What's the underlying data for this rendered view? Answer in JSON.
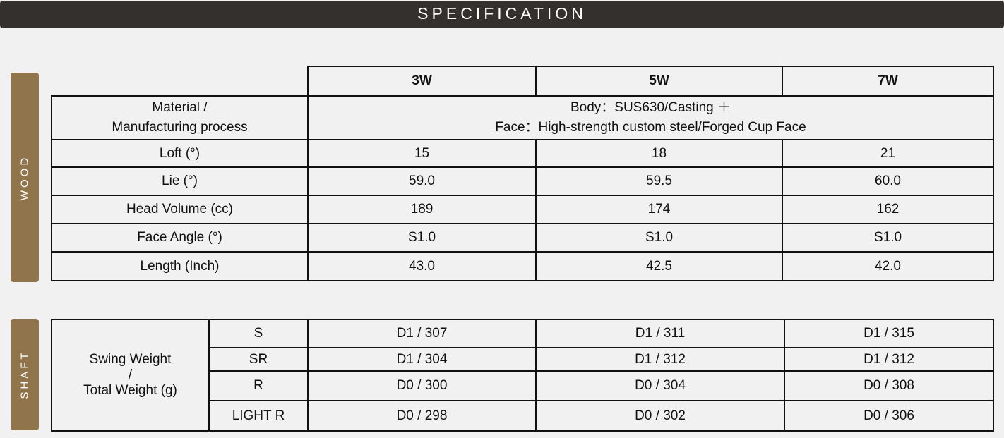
{
  "header": {
    "title": "SPECIFICATION"
  },
  "colors": {
    "header_bg": "#34302d",
    "label_bg": "#8f744c",
    "page_bg": "#f1f1f1"
  },
  "wood": {
    "label": "WOOD",
    "columns": [
      "3W",
      "5W",
      "7W"
    ],
    "material": {
      "label_line1": "Material /",
      "label_line2": "Manufacturing process",
      "value_line1": "Body：SUS630/Casting ＋",
      "value_line2": "Face：High-strength custom steel/Forged Cup Face"
    },
    "rows": [
      {
        "label": "Loft (°)",
        "values": [
          "15",
          "18",
          "21"
        ]
      },
      {
        "label": "Lie (°)",
        "values": [
          "59.0",
          "59.5",
          "60.0"
        ]
      },
      {
        "label": "Head Volume (cc)",
        "values": [
          "189",
          "174",
          "162"
        ]
      },
      {
        "label": "Face Angle (°)",
        "values": [
          "S1.0",
          "S1.0",
          "S1.0"
        ]
      },
      {
        "label": "Length (Inch)",
        "values": [
          "43.0",
          "42.5",
          "42.0"
        ]
      }
    ]
  },
  "shaft": {
    "label": "SHAFT",
    "group_label_line1": "Swing Weight",
    "group_label_line2": "/",
    "group_label_line3": "Total Weight (g)",
    "rows": [
      {
        "flex": "S",
        "values": [
          "D1 / 307",
          "D1 / 311",
          "D1 / 315"
        ]
      },
      {
        "flex": "SR",
        "values": [
          "D1 / 304",
          "D1 / 312",
          "D1 / 312"
        ]
      },
      {
        "flex": "R",
        "values": [
          "D0 / 300",
          "D0 / 304",
          "D0 / 308"
        ]
      },
      {
        "flex": "LIGHT R",
        "values": [
          "D0 / 298",
          "D0 / 302",
          "D0 / 306"
        ]
      }
    ]
  }
}
